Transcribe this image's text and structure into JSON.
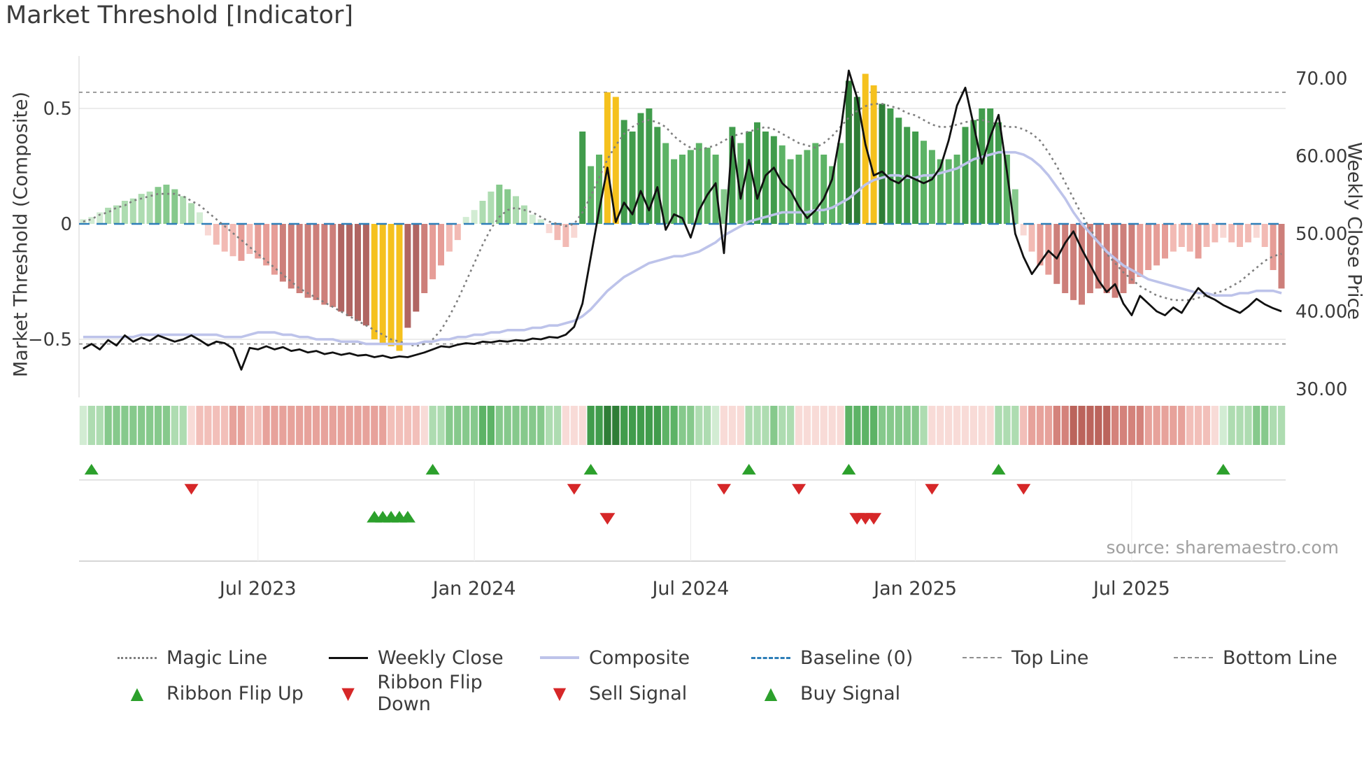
{
  "title": "Market Threshold [Indicator]",
  "source": "source: sharemaestro.com",
  "axes": {
    "left_label": "Market Threshold (Composite)",
    "right_label": "Weekly Close Price",
    "left_ticks": [
      {
        "v": 0.5,
        "label": "0.5"
      },
      {
        "v": 0.0,
        "label": "0"
      },
      {
        "v": -0.5,
        "label": "−0.5"
      }
    ],
    "right_ticks": [
      {
        "v": 70,
        "label": "70.00"
      },
      {
        "v": 60,
        "label": "60.00"
      },
      {
        "v": 50,
        "label": "50.00"
      },
      {
        "v": 40,
        "label": "40.00"
      },
      {
        "v": 30,
        "label": "30.00"
      }
    ],
    "x_ticks": [
      {
        "index": 21,
        "label": "Jul 2023"
      },
      {
        "index": 47,
        "label": "Jan 2024"
      },
      {
        "index": 73,
        "label": "Jul 2024"
      },
      {
        "index": 100,
        "label": "Jan 2025"
      },
      {
        "index": 126,
        "label": "Jul 2025"
      }
    ]
  },
  "colors": {
    "yellow": "#f5c11e",
    "weekly_close": "#111111",
    "composite": "#bdc3ea",
    "magic_line": "#7f7f7f",
    "baseline": "#2e7eb8",
    "refline": "#8f8f8f",
    "marker_green": "#2ca02c",
    "marker_red": "#d62728",
    "green_scale": [
      "#d2ecd3",
      "#aedcb1",
      "#86c98c",
      "#5db366",
      "#419c4c",
      "#2f7d37"
    ],
    "red_scale": [
      "#f8d8d4",
      "#f2bab4",
      "#e69d97",
      "#cd7f7a",
      "#b06562",
      "#975551"
    ],
    "ribbon_red_scale": [
      "#f8dbd7",
      "#f2bfb9",
      "#e7a29b",
      "#d4827b",
      "#bb645c",
      "#a3453d"
    ]
  },
  "chart_data": {
    "type": "combo",
    "components": [
      "bar",
      "line",
      "heatmap",
      "markers"
    ],
    "x_unit": "weekly",
    "left_ylim": [
      -0.72,
      0.72
    ],
    "right_ylim": [
      30,
      70
    ],
    "grid": "horizontal",
    "legend_position": "bottom",
    "reference_lines": {
      "baseline": 0.0,
      "top_line": 0.57,
      "bottom_line": -0.52
    },
    "yellow_bar_indices": [
      35,
      36,
      37,
      38,
      63,
      64,
      94,
      95
    ],
    "threshold_bars": [
      0.02,
      0.03,
      0.05,
      0.07,
      0.08,
      0.1,
      0.11,
      0.13,
      0.14,
      0.16,
      0.17,
      0.15,
      0.12,
      0.09,
      0.05,
      -0.05,
      -0.09,
      -0.12,
      -0.14,
      -0.16,
      -0.13,
      -0.15,
      -0.18,
      -0.22,
      -0.25,
      -0.28,
      -0.3,
      -0.32,
      -0.33,
      -0.35,
      -0.36,
      -0.38,
      -0.4,
      -0.42,
      -0.44,
      -0.5,
      -0.52,
      -0.53,
      -0.55,
      -0.45,
      -0.38,
      -0.3,
      -0.24,
      -0.18,
      -0.12,
      -0.07,
      0.03,
      0.06,
      0.1,
      0.14,
      0.17,
      0.15,
      0.12,
      0.08,
      0.04,
      0.02,
      -0.04,
      -0.07,
      -0.1,
      -0.06,
      0.4,
      0.25,
      0.3,
      0.57,
      0.55,
      0.45,
      0.4,
      0.48,
      0.5,
      0.42,
      0.35,
      0.28,
      0.3,
      0.32,
      0.35,
      0.33,
      0.3,
      0.15,
      0.42,
      0.35,
      0.4,
      0.44,
      0.4,
      0.38,
      0.34,
      0.28,
      0.3,
      0.32,
      0.35,
      0.3,
      0.25,
      0.35,
      0.62,
      0.55,
      0.65,
      0.6,
      0.52,
      0.5,
      0.46,
      0.42,
      0.4,
      0.36,
      0.32,
      0.28,
      0.28,
      0.3,
      0.42,
      0.45,
      0.5,
      0.5,
      0.44,
      0.3,
      0.15,
      -0.05,
      -0.12,
      -0.18,
      -0.22,
      -0.26,
      -0.3,
      -0.33,
      -0.35,
      -0.3,
      -0.28,
      -0.3,
      -0.32,
      -0.3,
      -0.26,
      -0.23,
      -0.2,
      -0.18,
      -0.15,
      -0.12,
      -0.1,
      -0.12,
      -0.15,
      -0.1,
      -0.08,
      -0.06,
      -0.08,
      -0.1,
      -0.08,
      -0.06,
      -0.1,
      -0.2,
      -0.28
    ],
    "weekly_close": [
      35.2,
      35.8,
      35.1,
      36.3,
      35.6,
      36.9,
      36.1,
      36.6,
      36.2,
      36.9,
      36.5,
      36.1,
      36.4,
      36.9,
      36.3,
      35.6,
      36.1,
      35.9,
      35.2,
      32.5,
      35.3,
      35.1,
      35.5,
      35.1,
      35.4,
      34.9,
      35.1,
      34.7,
      34.9,
      34.5,
      34.7,
      34.4,
      34.6,
      34.3,
      34.4,
      34.1,
      34.3,
      34.0,
      34.2,
      34.1,
      34.4,
      34.7,
      35.1,
      35.5,
      35.4,
      35.7,
      35.9,
      35.8,
      36.1,
      36.0,
      36.2,
      36.1,
      36.3,
      36.2,
      36.5,
      36.4,
      36.7,
      36.6,
      37.0,
      38.0,
      41.0,
      47.0,
      53.0,
      58.5,
      51.5,
      54.0,
      52.5,
      55.5,
      53.0,
      56.0,
      50.5,
      52.5,
      52.0,
      49.5,
      53.0,
      55.0,
      56.5,
      47.5,
      62.5,
      54.5,
      59.5,
      54.5,
      57.5,
      58.5,
      56.5,
      55.5,
      53.5,
      52.0,
      53.0,
      54.5,
      57.0,
      63.0,
      71.0,
      67.5,
      61.5,
      57.5,
      58.0,
      57.0,
      56.5,
      57.5,
      57.0,
      56.5,
      57.0,
      58.5,
      62.0,
      66.5,
      68.8,
      64.0,
      59.0,
      62.5,
      65.3,
      58.0,
      50.0,
      47.0,
      44.8,
      46.3,
      47.8,
      46.8,
      48.8,
      50.3,
      48.0,
      46.0,
      44.0,
      42.5,
      43.5,
      41.0,
      39.5,
      42.0,
      41.0,
      40.0,
      39.5,
      40.5,
      39.8,
      41.5,
      43.0,
      42.0,
      41.5,
      40.8,
      40.3,
      39.8,
      40.6,
      41.6,
      40.9,
      40.4,
      40.0
    ],
    "composite": [
      -0.49,
      -0.49,
      -0.49,
      -0.49,
      -0.49,
      -0.49,
      -0.49,
      -0.48,
      -0.48,
      -0.48,
      -0.48,
      -0.48,
      -0.48,
      -0.48,
      -0.48,
      -0.48,
      -0.48,
      -0.49,
      -0.49,
      -0.49,
      -0.48,
      -0.47,
      -0.47,
      -0.47,
      -0.48,
      -0.48,
      -0.49,
      -0.49,
      -0.5,
      -0.5,
      -0.5,
      -0.51,
      -0.51,
      -0.51,
      -0.52,
      -0.52,
      -0.52,
      -0.52,
      -0.52,
      -0.52,
      -0.52,
      -0.51,
      -0.51,
      -0.5,
      -0.5,
      -0.49,
      -0.49,
      -0.48,
      -0.48,
      -0.47,
      -0.47,
      -0.46,
      -0.46,
      -0.46,
      -0.45,
      -0.45,
      -0.44,
      -0.44,
      -0.43,
      -0.42,
      -0.4,
      -0.37,
      -0.33,
      -0.29,
      -0.26,
      -0.23,
      -0.21,
      -0.19,
      -0.17,
      -0.16,
      -0.15,
      -0.14,
      -0.14,
      -0.13,
      -0.12,
      -0.1,
      -0.08,
      -0.05,
      -0.03,
      -0.01,
      0.01,
      0.02,
      0.03,
      0.04,
      0.05,
      0.05,
      0.05,
      0.05,
      0.06,
      0.06,
      0.07,
      0.09,
      0.11,
      0.14,
      0.17,
      0.19,
      0.2,
      0.21,
      0.21,
      0.2,
      0.2,
      0.21,
      0.21,
      0.22,
      0.23,
      0.24,
      0.26,
      0.28,
      0.29,
      0.3,
      0.31,
      0.31,
      0.31,
      0.3,
      0.28,
      0.25,
      0.21,
      0.16,
      0.11,
      0.05,
      0.0,
      -0.04,
      -0.08,
      -0.12,
      -0.15,
      -0.18,
      -0.2,
      -0.22,
      -0.24,
      -0.25,
      -0.26,
      -0.27,
      -0.28,
      -0.29,
      -0.3,
      -0.3,
      -0.31,
      -0.31,
      -0.31,
      -0.3,
      -0.3,
      -0.29,
      -0.29,
      -0.29,
      -0.3
    ],
    "magic_line": [
      0.01,
      0.02,
      0.04,
      0.05,
      0.07,
      0.08,
      0.1,
      0.11,
      0.12,
      0.13,
      0.13,
      0.13,
      0.12,
      0.1,
      0.08,
      0.05,
      0.02,
      -0.01,
      -0.04,
      -0.07,
      -0.1,
      -0.13,
      -0.16,
      -0.19,
      -0.22,
      -0.25,
      -0.28,
      -0.3,
      -0.32,
      -0.34,
      -0.36,
      -0.38,
      -0.4,
      -0.42,
      -0.44,
      -0.46,
      -0.48,
      -0.5,
      -0.51,
      -0.52,
      -0.53,
      -0.52,
      -0.5,
      -0.46,
      -0.4,
      -0.33,
      -0.25,
      -0.17,
      -0.09,
      -0.02,
      0.03,
      0.06,
      0.07,
      0.06,
      0.05,
      0.03,
      0.01,
      0.0,
      -0.01,
      0.0,
      0.05,
      0.12,
      0.2,
      0.28,
      0.34,
      0.39,
      0.42,
      0.44,
      0.45,
      0.44,
      0.42,
      0.38,
      0.35,
      0.33,
      0.32,
      0.33,
      0.34,
      0.36,
      0.38,
      0.39,
      0.4,
      0.41,
      0.42,
      0.41,
      0.39,
      0.37,
      0.35,
      0.34,
      0.33,
      0.35,
      0.38,
      0.42,
      0.46,
      0.49,
      0.51,
      0.52,
      0.52,
      0.51,
      0.5,
      0.48,
      0.47,
      0.45,
      0.43,
      0.42,
      0.42,
      0.43,
      0.44,
      0.45,
      0.45,
      0.44,
      0.43,
      0.42,
      0.42,
      0.41,
      0.39,
      0.36,
      0.31,
      0.25,
      0.18,
      0.11,
      0.04,
      -0.02,
      -0.08,
      -0.13,
      -0.17,
      -0.21,
      -0.24,
      -0.27,
      -0.29,
      -0.31,
      -0.32,
      -0.33,
      -0.33,
      -0.33,
      -0.32,
      -0.31,
      -0.3,
      -0.29,
      -0.27,
      -0.25,
      -0.22,
      -0.19,
      -0.16,
      -0.14,
      -0.13
    ],
    "ribbon": [
      0.3,
      0.35,
      0.4,
      0.45,
      0.5,
      0.55,
      0.55,
      0.5,
      0.5,
      0.45,
      0.45,
      0.4,
      0.35,
      -0.3,
      -0.35,
      -0.35,
      -0.4,
      -0.4,
      -0.45,
      -0.45,
      -0.4,
      -0.4,
      -0.45,
      -0.45,
      -0.5,
      -0.5,
      -0.5,
      -0.5,
      -0.5,
      -0.55,
      -0.55,
      -0.5,
      -0.5,
      -0.5,
      -0.45,
      -0.45,
      -0.45,
      -0.4,
      -0.4,
      -0.35,
      -0.35,
      -0.3,
      0.35,
      0.4,
      0.45,
      0.5,
      0.5,
      0.55,
      0.6,
      0.6,
      0.55,
      0.55,
      0.5,
      0.5,
      0.45,
      0.45,
      0.4,
      0.35,
      -0.25,
      -0.3,
      -0.25,
      0.7,
      0.75,
      0.85,
      0.85,
      0.8,
      0.8,
      0.75,
      0.75,
      0.7,
      0.65,
      0.6,
      0.5,
      0.45,
      0.4,
      0.35,
      0.3,
      -0.3,
      -0.3,
      -0.25,
      0.35,
      0.4,
      0.4,
      0.45,
      0.4,
      0.35,
      -0.25,
      -0.3,
      -0.3,
      -0.25,
      -0.2,
      -0.2,
      0.6,
      0.65,
      0.65,
      0.6,
      0.55,
      0.5,
      0.5,
      0.45,
      0.45,
      0.4,
      -0.2,
      -0.25,
      -0.25,
      -0.2,
      -0.2,
      -0.25,
      -0.2,
      -0.2,
      0.35,
      0.4,
      0.35,
      -0.4,
      -0.45,
      -0.5,
      -0.55,
      -0.6,
      -0.65,
      -0.7,
      -0.75,
      -0.75,
      -0.7,
      -0.7,
      -0.65,
      -0.65,
      -0.6,
      -0.6,
      -0.55,
      -0.5,
      -0.5,
      -0.45,
      -0.45,
      -0.4,
      -0.4,
      -0.35,
      -0.3,
      0.3,
      0.35,
      0.4,
      0.4,
      0.45,
      0.45,
      0.4,
      0.4
    ],
    "markers": {
      "ribbon_flip_up": [
        1,
        42,
        61,
        80,
        92,
        110,
        137
      ],
      "ribbon_flip_down": [
        13,
        59,
        77,
        86,
        102,
        113
      ],
      "buy_signals": [
        35,
        36,
        37,
        38,
        39
      ],
      "sell_signals": [
        63,
        93,
        94,
        95
      ]
    }
  },
  "legend": {
    "row1": [
      {
        "label": "Magic Line",
        "swatch": "magic"
      },
      {
        "label": "Weekly Close",
        "swatch": "close"
      },
      {
        "label": "Composite",
        "swatch": "composite"
      },
      {
        "label": "Baseline (0)",
        "swatch": "baseline"
      },
      {
        "label": "Top Line",
        "swatch": "refline"
      },
      {
        "label": "Bottom Line",
        "swatch": "refline"
      }
    ],
    "row2": [
      {
        "label": "Ribbon Flip Up",
        "swatch": "tri-up"
      },
      {
        "label": "Ribbon Flip Down",
        "swatch": "tri-down"
      },
      {
        "label": "Sell Signal",
        "swatch": "tri-down"
      },
      {
        "label": "Buy Signal",
        "swatch": "tri-up"
      }
    ]
  }
}
